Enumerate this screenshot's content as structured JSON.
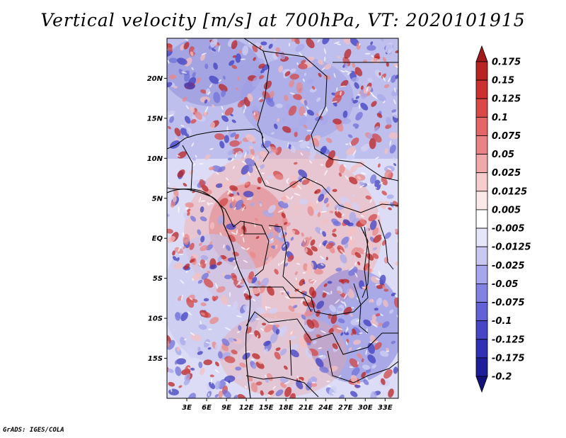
{
  "title": "Vertical velocity [m/s] at 700hPa, VT: 2020101915",
  "credit": "GrADS: IGES/COLA",
  "map": {
    "lon_range": [
      0,
      35
    ],
    "lat_range": [
      -20,
      25
    ],
    "lon_ticks": [
      "3E",
      "6E",
      "9E",
      "12E",
      "15E",
      "18E",
      "21E",
      "24E",
      "27E",
      "30E",
      "33E"
    ],
    "lat_ticks": [
      "20N",
      "15N",
      "10N",
      "5N",
      "EQ",
      "5S",
      "10S",
      "15S"
    ]
  },
  "colorbar": {
    "levels": [
      "0.175",
      "0.15",
      "0.125",
      "0.1",
      "0.075",
      "0.05",
      "0.025",
      "0.0125",
      "0.005",
      "-0.005",
      "-0.0125",
      "-0.025",
      "-0.05",
      "-0.075",
      "-0.1",
      "-0.125",
      "-0.175",
      "-0.2"
    ],
    "colors": [
      "#a01a1a",
      "#b82424",
      "#cc3030",
      "#db4848",
      "#e46666",
      "#ea8484",
      "#f0a8a8",
      "#f6cccc",
      "#fbe8e8",
      "#ffffff",
      "#e6e6fa",
      "#c8c8f2",
      "#a6a6ec",
      "#8282e2",
      "#6262d6",
      "#4646c6",
      "#3030b4",
      "#1e1e9a",
      "#12127a"
    ]
  }
}
